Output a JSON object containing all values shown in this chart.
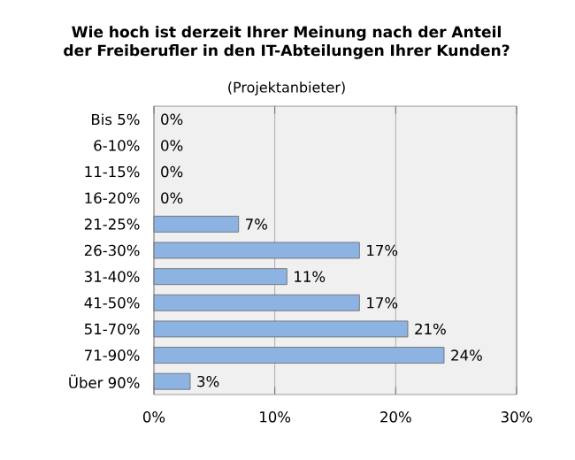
{
  "chart_data": {
    "type": "bar",
    "orientation": "horizontal",
    "title": "Wie hoch ist derzeit Ihrer Meinung nach der Anteil der Freiberufler in den IT-Abteilungen Ihrer Kunden?",
    "subtitle": "(Projektanbieter)",
    "categories": [
      "Bis 5%",
      "6-10%",
      "11-15%",
      "16-20%",
      "21-25%",
      "26-30%",
      "31-40%",
      "41-50%",
      "51-70%",
      "71-90%",
      "Über 90%"
    ],
    "values": [
      0,
      0,
      0,
      0,
      7,
      17,
      11,
      17,
      21,
      24,
      3
    ],
    "value_labels": [
      "0%",
      "0%",
      "0%",
      "0%",
      "7%",
      "17%",
      "11%",
      "17%",
      "21%",
      "24%",
      "3%"
    ],
    "color": "#8db3e2",
    "xlim": [
      0,
      30
    ],
    "xticks": [
      {
        "value": 0,
        "label": "0%"
      },
      {
        "value": 10,
        "label": "10%"
      },
      {
        "value": 20,
        "label": "20%"
      },
      {
        "value": 30,
        "label": "30%"
      }
    ],
    "grid": "x"
  }
}
